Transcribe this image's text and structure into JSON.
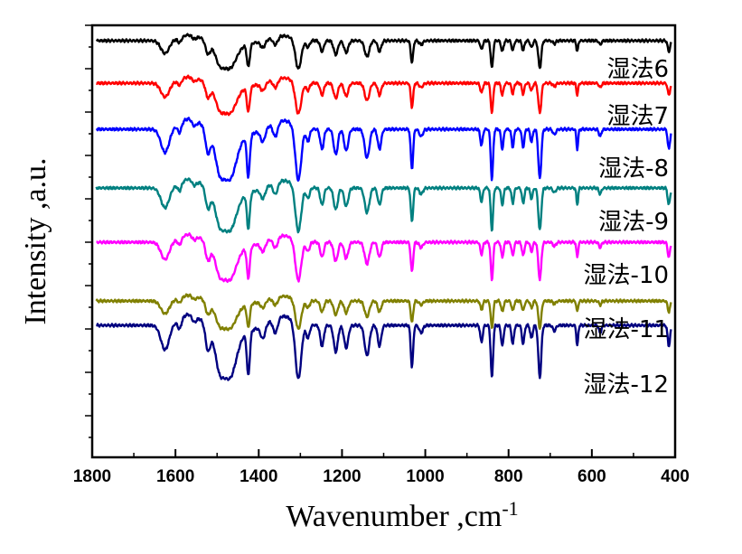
{
  "chart_data": {
    "type": "line",
    "title": "",
    "xlabel": "Wavenumber ,cm",
    "xlabel_superscript": "-1",
    "ylabel": "Intensity ,a.u.",
    "xlim": [
      1800,
      400
    ],
    "x_reversed": true,
    "x_ticks": [
      "1800",
      "1600",
      "1400",
      "1200",
      "1000",
      "800",
      "600",
      "400"
    ],
    "y_tick_labels": false,
    "grid": false,
    "x_peaks_cm1": [
      1620,
      1585,
      1560,
      1520,
      1470,
      1430,
      1420,
      1380,
      1310,
      1300,
      1250,
      1210,
      1190,
      1140,
      1110,
      1030,
      865,
      840,
      810,
      785,
      760,
      725,
      635,
      580,
      415
    ],
    "series": [
      {
        "name": "湿法6",
        "color": "#000000",
        "baseline": 45,
        "scale": 0.55
      },
      {
        "name": "湿法7",
        "color": "#ff0000",
        "baseline": 92,
        "scale": 0.6
      },
      {
        "name": "湿法-8",
        "color": "#0000ff",
        "baseline": 143,
        "scale": 1.0
      },
      {
        "name": "湿法-9",
        "color": "#008080",
        "baseline": 208,
        "scale": 0.85
      },
      {
        "name": "湿法-10",
        "color": "#ff00ff",
        "baseline": 268,
        "scale": 0.75
      },
      {
        "name": "湿法-11",
        "color": "#808000",
        "baseline": 333,
        "scale": 0.55
      },
      {
        "name": "湿法-12",
        "color": "#000080",
        "baseline": 360,
        "scale": 1.05
      }
    ]
  }
}
